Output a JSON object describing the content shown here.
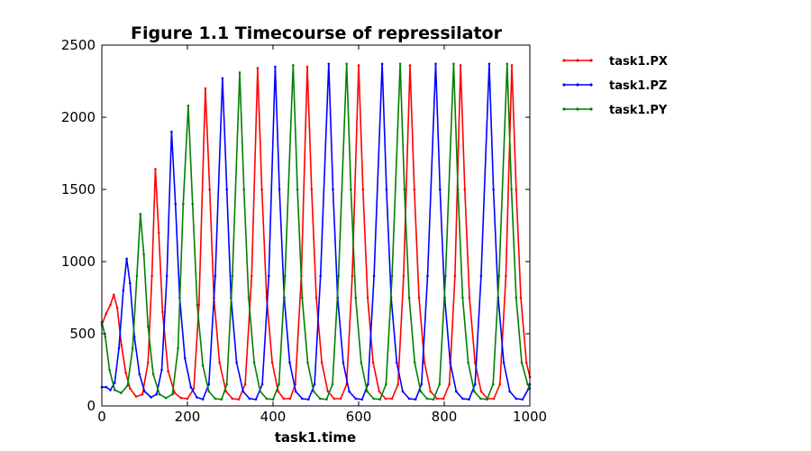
{
  "chart_data": {
    "type": "line",
    "title": "Figure 1.1 Timecourse of repressilator",
    "xlabel": "task1.time",
    "ylabel": "",
    "xlim": [
      0,
      1000
    ],
    "ylim": [
      0,
      2500
    ],
    "xticks": [
      "0",
      "200",
      "400",
      "600",
      "800",
      "1000"
    ],
    "yticks": [
      "0",
      "500",
      "1000",
      "1500",
      "2000",
      "2500"
    ],
    "grid": false,
    "legend_position": "outside-right",
    "series": [
      {
        "name": "task1.PX",
        "color": "#ff0000",
        "points": [
          [
            0,
            560
          ],
          [
            10,
            640
          ],
          [
            20,
            700
          ],
          [
            28,
            770
          ],
          [
            36,
            680
          ],
          [
            46,
            420
          ],
          [
            56,
            230
          ],
          [
            66,
            120
          ],
          [
            80,
            65
          ],
          [
            95,
            80
          ],
          [
            108,
            300
          ],
          [
            117,
            900
          ],
          [
            125,
            1640
          ],
          [
            133,
            1200
          ],
          [
            142,
            650
          ],
          [
            155,
            240
          ],
          [
            170,
            90
          ],
          [
            185,
            55
          ],
          [
            200,
            50
          ],
          [
            215,
            120
          ],
          [
            227,
            700
          ],
          [
            242,
            2200
          ],
          [
            252,
            1500
          ],
          [
            262,
            750
          ],
          [
            275,
            300
          ],
          [
            290,
            100
          ],
          [
            305,
            50
          ],
          [
            320,
            45
          ],
          [
            335,
            150
          ],
          [
            350,
            900
          ],
          [
            364,
            2340
          ],
          [
            374,
            1500
          ],
          [
            385,
            750
          ],
          [
            398,
            300
          ],
          [
            412,
            100
          ],
          [
            425,
            50
          ],
          [
            440,
            50
          ],
          [
            452,
            150
          ],
          [
            466,
            900
          ],
          [
            480,
            2350
          ],
          [
            490,
            1500
          ],
          [
            501,
            750
          ],
          [
            514,
            300
          ],
          [
            528,
            100
          ],
          [
            543,
            50
          ],
          [
            558,
            50
          ],
          [
            572,
            150
          ],
          [
            585,
            900
          ],
          [
            600,
            2360
          ],
          [
            610,
            1500
          ],
          [
            621,
            750
          ],
          [
            634,
            300
          ],
          [
            648,
            100
          ],
          [
            663,
            50
          ],
          [
            678,
            50
          ],
          [
            692,
            150
          ],
          [
            705,
            900
          ],
          [
            720,
            2360
          ],
          [
            730,
            1500
          ],
          [
            741,
            750
          ],
          [
            754,
            300
          ],
          [
            768,
            100
          ],
          [
            783,
            50
          ],
          [
            798,
            50
          ],
          [
            812,
            150
          ],
          [
            825,
            900
          ],
          [
            838,
            2360
          ],
          [
            848,
            1500
          ],
          [
            859,
            750
          ],
          [
            872,
            300
          ],
          [
            886,
            100
          ],
          [
            901,
            50
          ],
          [
            916,
            50
          ],
          [
            930,
            150
          ],
          [
            944,
            900
          ],
          [
            958,
            2360
          ],
          [
            968,
            1500
          ],
          [
            979,
            750
          ],
          [
            992,
            300
          ],
          [
            1000,
            200
          ]
        ]
      },
      {
        "name": "task1.PZ",
        "color": "#0000ff",
        "points": [
          [
            0,
            130
          ],
          [
            10,
            130
          ],
          [
            20,
            110
          ],
          [
            30,
            160
          ],
          [
            40,
            400
          ],
          [
            50,
            800
          ],
          [
            58,
            1020
          ],
          [
            66,
            850
          ],
          [
            76,
            480
          ],
          [
            88,
            220
          ],
          [
            100,
            100
          ],
          [
            115,
            60
          ],
          [
            128,
            80
          ],
          [
            140,
            250
          ],
          [
            152,
            900
          ],
          [
            163,
            1900
          ],
          [
            172,
            1400
          ],
          [
            182,
            750
          ],
          [
            194,
            330
          ],
          [
            208,
            130
          ],
          [
            222,
            60
          ],
          [
            236,
            45
          ],
          [
            250,
            150
          ],
          [
            265,
            900
          ],
          [
            282,
            2270
          ],
          [
            292,
            1500
          ],
          [
            302,
            750
          ],
          [
            315,
            300
          ],
          [
            330,
            100
          ],
          [
            345,
            50
          ],
          [
            360,
            45
          ],
          [
            375,
            150
          ],
          [
            390,
            900
          ],
          [
            405,
            2350
          ],
          [
            415,
            1500
          ],
          [
            426,
            750
          ],
          [
            439,
            300
          ],
          [
            453,
            100
          ],
          [
            468,
            50
          ],
          [
            483,
            45
          ],
          [
            497,
            150
          ],
          [
            511,
            900
          ],
          [
            530,
            2370
          ],
          [
            540,
            1500
          ],
          [
            551,
            750
          ],
          [
            564,
            300
          ],
          [
            578,
            100
          ],
          [
            593,
            50
          ],
          [
            608,
            45
          ],
          [
            622,
            150
          ],
          [
            636,
            900
          ],
          [
            655,
            2370
          ],
          [
            665,
            1500
          ],
          [
            676,
            750
          ],
          [
            689,
            300
          ],
          [
            703,
            100
          ],
          [
            718,
            50
          ],
          [
            733,
            45
          ],
          [
            747,
            150
          ],
          [
            761,
            900
          ],
          [
            780,
            2370
          ],
          [
            790,
            1500
          ],
          [
            801,
            750
          ],
          [
            814,
            300
          ],
          [
            828,
            100
          ],
          [
            843,
            50
          ],
          [
            858,
            45
          ],
          [
            872,
            150
          ],
          [
            886,
            900
          ],
          [
            905,
            2370
          ],
          [
            915,
            1500
          ],
          [
            926,
            750
          ],
          [
            939,
            300
          ],
          [
            953,
            100
          ],
          [
            968,
            50
          ],
          [
            983,
            45
          ],
          [
            997,
            120
          ],
          [
            1000,
            150
          ]
        ]
      },
      {
        "name": "task1.PY",
        "color": "#008000",
        "points": [
          [
            0,
            580
          ],
          [
            8,
            480
          ],
          [
            18,
            250
          ],
          [
            30,
            110
          ],
          [
            45,
            90
          ],
          [
            60,
            140
          ],
          [
            72,
            400
          ],
          [
            82,
            900
          ],
          [
            90,
            1330
          ],
          [
            98,
            1050
          ],
          [
            108,
            550
          ],
          [
            120,
            220
          ],
          [
            135,
            80
          ],
          [
            150,
            55
          ],
          [
            165,
            80
          ],
          [
            178,
            400
          ],
          [
            190,
            1400
          ],
          [
            202,
            2080
          ],
          [
            212,
            1400
          ],
          [
            223,
            700
          ],
          [
            236,
            280
          ],
          [
            250,
            100
          ],
          [
            265,
            50
          ],
          [
            280,
            45
          ],
          [
            292,
            150
          ],
          [
            305,
            900
          ],
          [
            322,
            2310
          ],
          [
            332,
            1500
          ],
          [
            343,
            750
          ],
          [
            356,
            300
          ],
          [
            370,
            100
          ],
          [
            385,
            50
          ],
          [
            400,
            45
          ],
          [
            414,
            150
          ],
          [
            428,
            900
          ],
          [
            447,
            2360
          ],
          [
            457,
            1500
          ],
          [
            468,
            750
          ],
          [
            481,
            300
          ],
          [
            495,
            100
          ],
          [
            510,
            50
          ],
          [
            525,
            45
          ],
          [
            539,
            150
          ],
          [
            553,
            900
          ],
          [
            572,
            2370
          ],
          [
            582,
            1500
          ],
          [
            593,
            750
          ],
          [
            606,
            300
          ],
          [
            620,
            100
          ],
          [
            635,
            50
          ],
          [
            650,
            45
          ],
          [
            664,
            150
          ],
          [
            678,
            900
          ],
          [
            697,
            2370
          ],
          [
            707,
            1500
          ],
          [
            718,
            750
          ],
          [
            731,
            300
          ],
          [
            745,
            100
          ],
          [
            760,
            50
          ],
          [
            775,
            45
          ],
          [
            789,
            150
          ],
          [
            803,
            900
          ],
          [
            822,
            2370
          ],
          [
            832,
            1500
          ],
          [
            843,
            750
          ],
          [
            856,
            300
          ],
          [
            870,
            100
          ],
          [
            885,
            50
          ],
          [
            900,
            45
          ],
          [
            914,
            150
          ],
          [
            928,
            900
          ],
          [
            947,
            2370
          ],
          [
            957,
            1500
          ],
          [
            968,
            750
          ],
          [
            981,
            300
          ],
          [
            995,
            150
          ],
          [
            1000,
            120
          ]
        ]
      }
    ]
  }
}
